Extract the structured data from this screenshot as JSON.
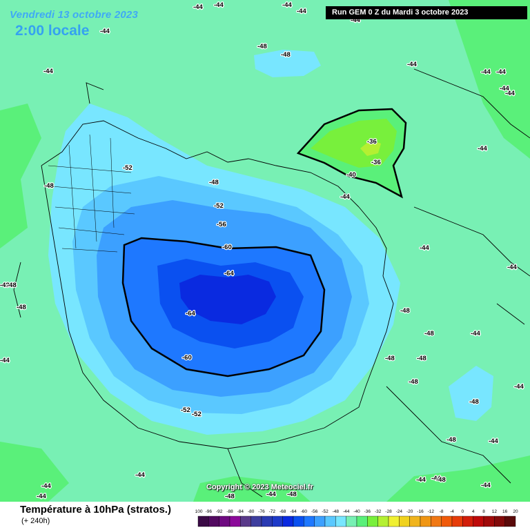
{
  "header": {
    "date": "Vendredi 13 octobre 2023",
    "local_time": "2:00 locale",
    "run": "Run GEM 0 Z du Mardi 3 octobre 2023"
  },
  "footer": {
    "field_title": "Température à 10hPa (stratos.)",
    "lead_time": "(+ 240h)",
    "copyright": "Copyright © 2023 Meteociel.fr"
  },
  "legend": {
    "ticks": [
      "-100",
      "-96",
      "-92",
      "-88",
      "-84",
      "-80",
      "-76",
      "-72",
      "-68",
      "-64",
      "-60",
      "-56",
      "-52",
      "-48",
      "-44",
      "-40",
      "-36",
      "-32",
      "-28",
      "-24",
      "-20",
      "-16",
      "-12",
      "-8",
      "-4",
      "0",
      "4",
      "8",
      "12",
      "16",
      "20"
    ],
    "colors": [
      "#3a0a45",
      "#520a60",
      "#6e0a80",
      "#8c0a9a",
      "#5a3a8a",
      "#3e3e9e",
      "#2a3ab2",
      "#1e3ac8",
      "#0a2ae0",
      "#0a50f0",
      "#1e78ff",
      "#3ca0ff",
      "#5ac8ff",
      "#78e6ff",
      "#78f0b4",
      "#5af07a",
      "#78f03c",
      "#b4f032",
      "#f0f032",
      "#f0d21e",
      "#f0b41e",
      "#f09614",
      "#f07814",
      "#f05a0a",
      "#e63c0a",
      "#d21e0a",
      "#be0a0a",
      "#a00a0a",
      "#820a0a",
      "#5a0a0a"
    ]
  },
  "map": {
    "colors": {
      "minus44": "#78f0b4",
      "minus40": "#5af07a",
      "minus36": "#78f03c",
      "minus32": "#b4f032",
      "minus48": "#78e6ff",
      "minus52": "#5ac8ff",
      "minus56": "#3ca0ff",
      "minus60": "#1e78ff",
      "minus64": "#0a50f0",
      "minus68": "#0a2ae0"
    },
    "labels": [
      {
        "text": "-44"
      },
      {
        "text": "-44"
      },
      {
        "text": "-44"
      },
      {
        "text": "-44"
      },
      {
        "text": "-44"
      },
      {
        "text": "-44"
      },
      {
        "text": "-44"
      },
      {
        "text": "-44"
      },
      {
        "text": "-44"
      },
      {
        "text": "-44"
      },
      {
        "text": "-44"
      },
      {
        "text": "-44"
      },
      {
        "text": "-44"
      },
      {
        "text": "-44"
      },
      {
        "text": "-44"
      },
      {
        "text": "-44"
      },
      {
        "text": "-44"
      },
      {
        "text": "-44"
      },
      {
        "text": "-44"
      },
      {
        "text": "-44"
      },
      {
        "text": "-44"
      },
      {
        "text": "-44"
      },
      {
        "text": "-44"
      },
      {
        "text": "-44"
      },
      {
        "text": "-44"
      },
      {
        "text": "-44"
      },
      {
        "text": "-44"
      },
      {
        "text": "-48"
      },
      {
        "text": "-48"
      },
      {
        "text": "-48"
      },
      {
        "text": "-48"
      },
      {
        "text": "-48"
      },
      {
        "text": "-48"
      },
      {
        "text": "-48"
      },
      {
        "text": "-48"
      },
      {
        "text": "-48"
      },
      {
        "text": "-48"
      },
      {
        "text": "-48"
      },
      {
        "text": "-48"
      },
      {
        "text": "-48"
      },
      {
        "text": "-48"
      },
      {
        "text": "-48"
      },
      {
        "text": "-48"
      },
      {
        "text": "-48"
      },
      {
        "text": "-52"
      },
      {
        "text": "-52"
      },
      {
        "text": "-52"
      },
      {
        "text": "-52"
      },
      {
        "text": "-56"
      },
      {
        "text": "-60"
      },
      {
        "text": "-60"
      },
      {
        "text": "-64"
      },
      {
        "text": "-64"
      },
      {
        "text": "-40"
      },
      {
        "text": "-36"
      },
      {
        "text": "-36"
      }
    ]
  }
}
